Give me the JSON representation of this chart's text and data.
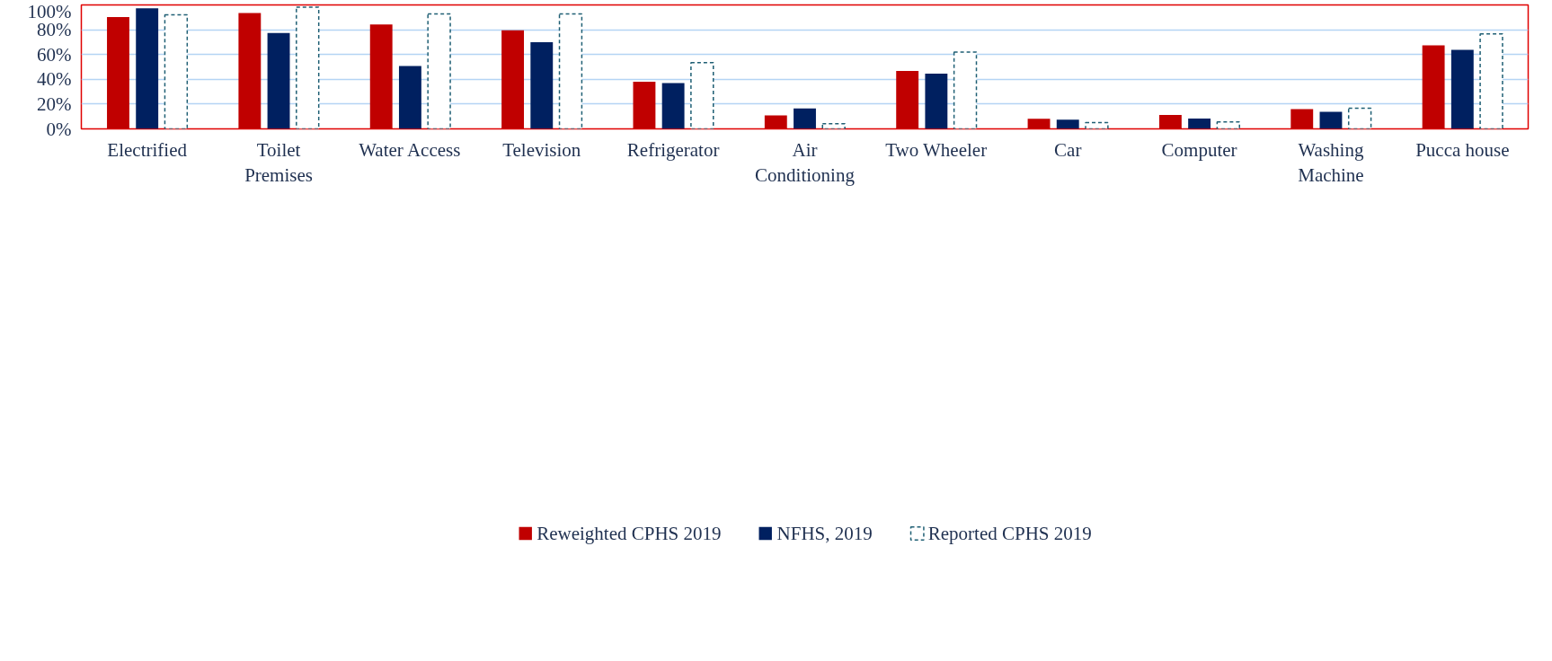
{
  "chart_data": {
    "type": "bar",
    "categories": [
      "Electrified",
      "Toilet Premises",
      "Water Access",
      "Television",
      "Refrigerator",
      "Air Conditioning",
      "Two Wheeler",
      "Car",
      "Computer",
      "Washing Machine",
      "Pucca house"
    ],
    "series": [
      {
        "name": "Reweighted CPHS 2019",
        "color": "#c00000",
        "values": [
          90.3,
          93.4,
          84.3,
          79.6,
          38.1,
          10.8,
          46.7,
          8.2,
          11.3,
          15.9,
          67.4
        ]
      },
      {
        "name": "NFHS, 2019",
        "color": "#002060",
        "values": [
          97.3,
          77.3,
          50.7,
          69.9,
          36.9,
          16.5,
          44.6,
          7.4,
          8.3,
          13.7,
          63.8
        ]
      },
      {
        "name": "Reported CPHS 2019",
        "color": "#1f5f74",
        "line_style": "dashed",
        "values": [
          92.0,
          98.2,
          92.8,
          92.7,
          53.4,
          4.1,
          61.9,
          5.1,
          5.7,
          16.6,
          76.6
        ]
      }
    ],
    "ylim": [
      0,
      100
    ],
    "yticks": [
      {
        "value": 0,
        "label": "0%"
      },
      {
        "value": 20,
        "label": "20%"
      },
      {
        "value": 40,
        "label": "40%"
      },
      {
        "value": 60,
        "label": "60%"
      },
      {
        "value": 80,
        "label": "80%"
      },
      {
        "value": 100,
        "label": "100%"
      }
    ],
    "grid": "y",
    "legend": "bottom"
  }
}
